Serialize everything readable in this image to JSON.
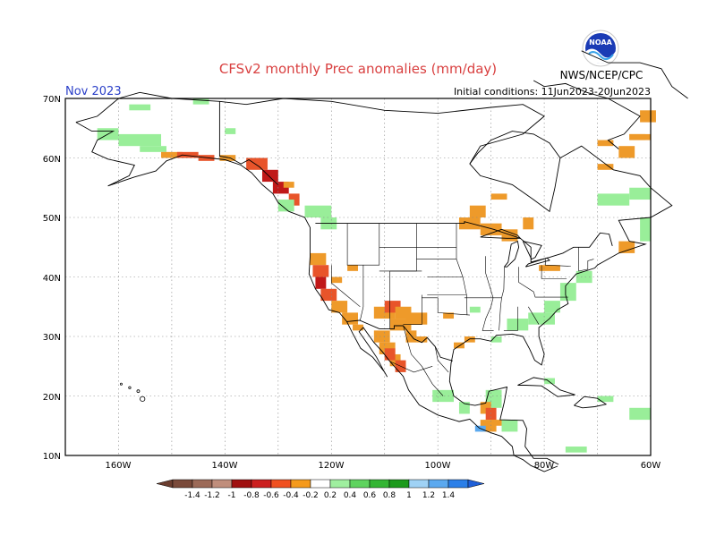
{
  "title": "CFSv2 monthly Prec anomalies (mm/day)",
  "month_label": "Nov 2023",
  "init_label": "Initial conditions: 11Jun2023-20Jun2023",
  "agency_label": "NWS/NCEP/CPC",
  "logo_text": "NOAA",
  "colors": {
    "title": "#d94040",
    "month": "#2a3fc8",
    "ocean": "#ffffff",
    "coast": "#000000",
    "wet_light": "#99ee99",
    "dry_light": "#ee9a2a",
    "dry_mid": "#e8542a",
    "dry_dark": "#c01818"
  },
  "map": {
    "lon_range": [
      -170,
      -60
    ],
    "lat_range": [
      10,
      70
    ],
    "lat_labels": [
      "70N",
      "60N",
      "50N",
      "40N",
      "30N",
      "20N",
      "10N"
    ],
    "lon_labels": [
      "160W",
      "140W",
      "120W",
      "100W",
      "80W",
      "60W"
    ]
  },
  "legend": {
    "labels": [
      "-1.4",
      "-1.2",
      "-1",
      "-0.8",
      "-0.6",
      "-0.4",
      "-0.2",
      "0.2",
      "0.4",
      "0.6",
      "0.8",
      "1",
      "1.2",
      "1.4"
    ],
    "colors": [
      "#7a4a3a",
      "#9c6a58",
      "#c08e7c",
      "#a01010",
      "#cc1f1f",
      "#f05020",
      "#f59a1c",
      "#ffffff",
      "#9fef9f",
      "#5ed35e",
      "#33b533",
      "#1c9a1c",
      "#9fd2f5",
      "#5ba9ef",
      "#2b7fe8"
    ],
    "low_tip_color": "#6b3d2e",
    "high_tip_color": "#1f5fd8"
  }
}
